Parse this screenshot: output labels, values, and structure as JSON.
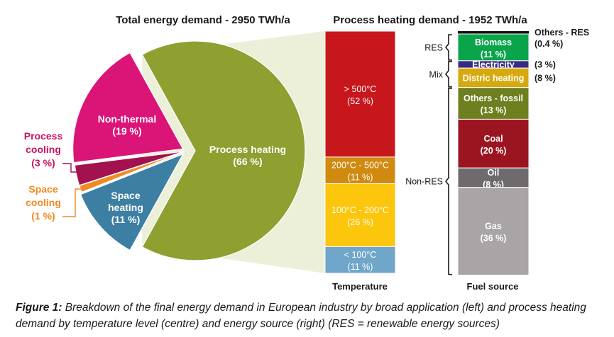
{
  "chart_data": [
    {
      "type": "pie",
      "title": "Total energy demand - 2950 TWh/a",
      "slices": [
        {
          "label": "Process heating",
          "percent_label": "(66 %)",
          "value": 66,
          "color": "#8fa031",
          "text_color": "#ffffff"
        },
        {
          "label": "Space heating",
          "percent_label": "(11 %)",
          "value": 11,
          "color": "#3d7fa3",
          "text_color": "#ffffff"
        },
        {
          "label": "Space cooling",
          "percent_label": "(1 %)",
          "value": 1,
          "color": "#f08a24",
          "text_color": "#f08a24"
        },
        {
          "label": "Process cooling",
          "percent_label": "(3 %)",
          "value": 3,
          "color": "#a3124f",
          "text_color": "#c8145f"
        },
        {
          "label": "Non-thermal",
          "percent_label": "(19 %)",
          "value": 19,
          "color": "#db1477",
          "text_color": "#ffffff"
        }
      ]
    },
    {
      "type": "bar",
      "title": "Process heating demand - 1952 TWh/a",
      "xlabel": "Temperature",
      "stack": [
        {
          "label": "> 500°C",
          "percent_label": "(52 %)",
          "value": 52,
          "color": "#c8161d",
          "text_color": "#ffffff"
        },
        {
          "label": "200°C - 500°C",
          "percent_label": "(11 %)",
          "value": 11,
          "color": "#d18a10",
          "text_color": "#ffffff"
        },
        {
          "label": "100°C - 200°C",
          "percent_label": "(26 %)",
          "value": 26,
          "color": "#fbc60b",
          "text_color": "#ffffff"
        },
        {
          "label": "< 100°C",
          "percent_label": "(11 %)",
          "value": 11,
          "color": "#6fa6c9",
          "text_color": "#ffffff"
        }
      ]
    },
    {
      "type": "bar",
      "xlabel": "Fuel source",
      "stack": [
        {
          "label": "Others - RES",
          "percent_label": "(0.4 %)",
          "value": 0.4,
          "color": "#111111",
          "text_color": "#1a1a1a",
          "label_side": "right"
        },
        {
          "label": "Biomass",
          "percent_label": "(11 %)",
          "value": 11,
          "color": "#0aa44a",
          "text_color": "#ffffff"
        },
        {
          "label": "Electricity",
          "percent_label": "(3 %)",
          "value": 3,
          "color": "#3a2a86",
          "text_color": "#ffffff",
          "side_percent": true
        },
        {
          "label": "Distric heating",
          "percent_label": "(8 %)",
          "value": 8,
          "color": "#d6a90f",
          "text_color": "#ffffff",
          "side_percent": true
        },
        {
          "label": "Others - fossil",
          "percent_label": "(13 %)",
          "value": 13,
          "color": "#6e7f1f",
          "text_color": "#ffffff"
        },
        {
          "label": "Coal",
          "percent_label": "(20 %)",
          "value": 20,
          "color": "#9b1520",
          "text_color": "#ffffff"
        },
        {
          "label": "Oil",
          "percent_label": "(8 %)",
          "value": 8,
          "color": "#6f6b6c",
          "text_color": "#ffffff"
        },
        {
          "label": "Gas",
          "percent_label": "(36 %)",
          "value": 36,
          "color": "#a9a4a6",
          "text_color": "#ffffff"
        }
      ],
      "groups": [
        {
          "label": "RES",
          "from": 1,
          "to": 1
        },
        {
          "label": "Mix",
          "from": 2,
          "to": 3
        },
        {
          "label": "Non-RES",
          "from": 4,
          "to": 7
        }
      ]
    }
  ],
  "caption": {
    "prefix": "Figure 1:",
    "text": " Breakdown of the final energy demand in European industry by broad application (left) and process heating demand by temperature level (centre) and energy source (right) (RES = renewable energy sources)"
  }
}
